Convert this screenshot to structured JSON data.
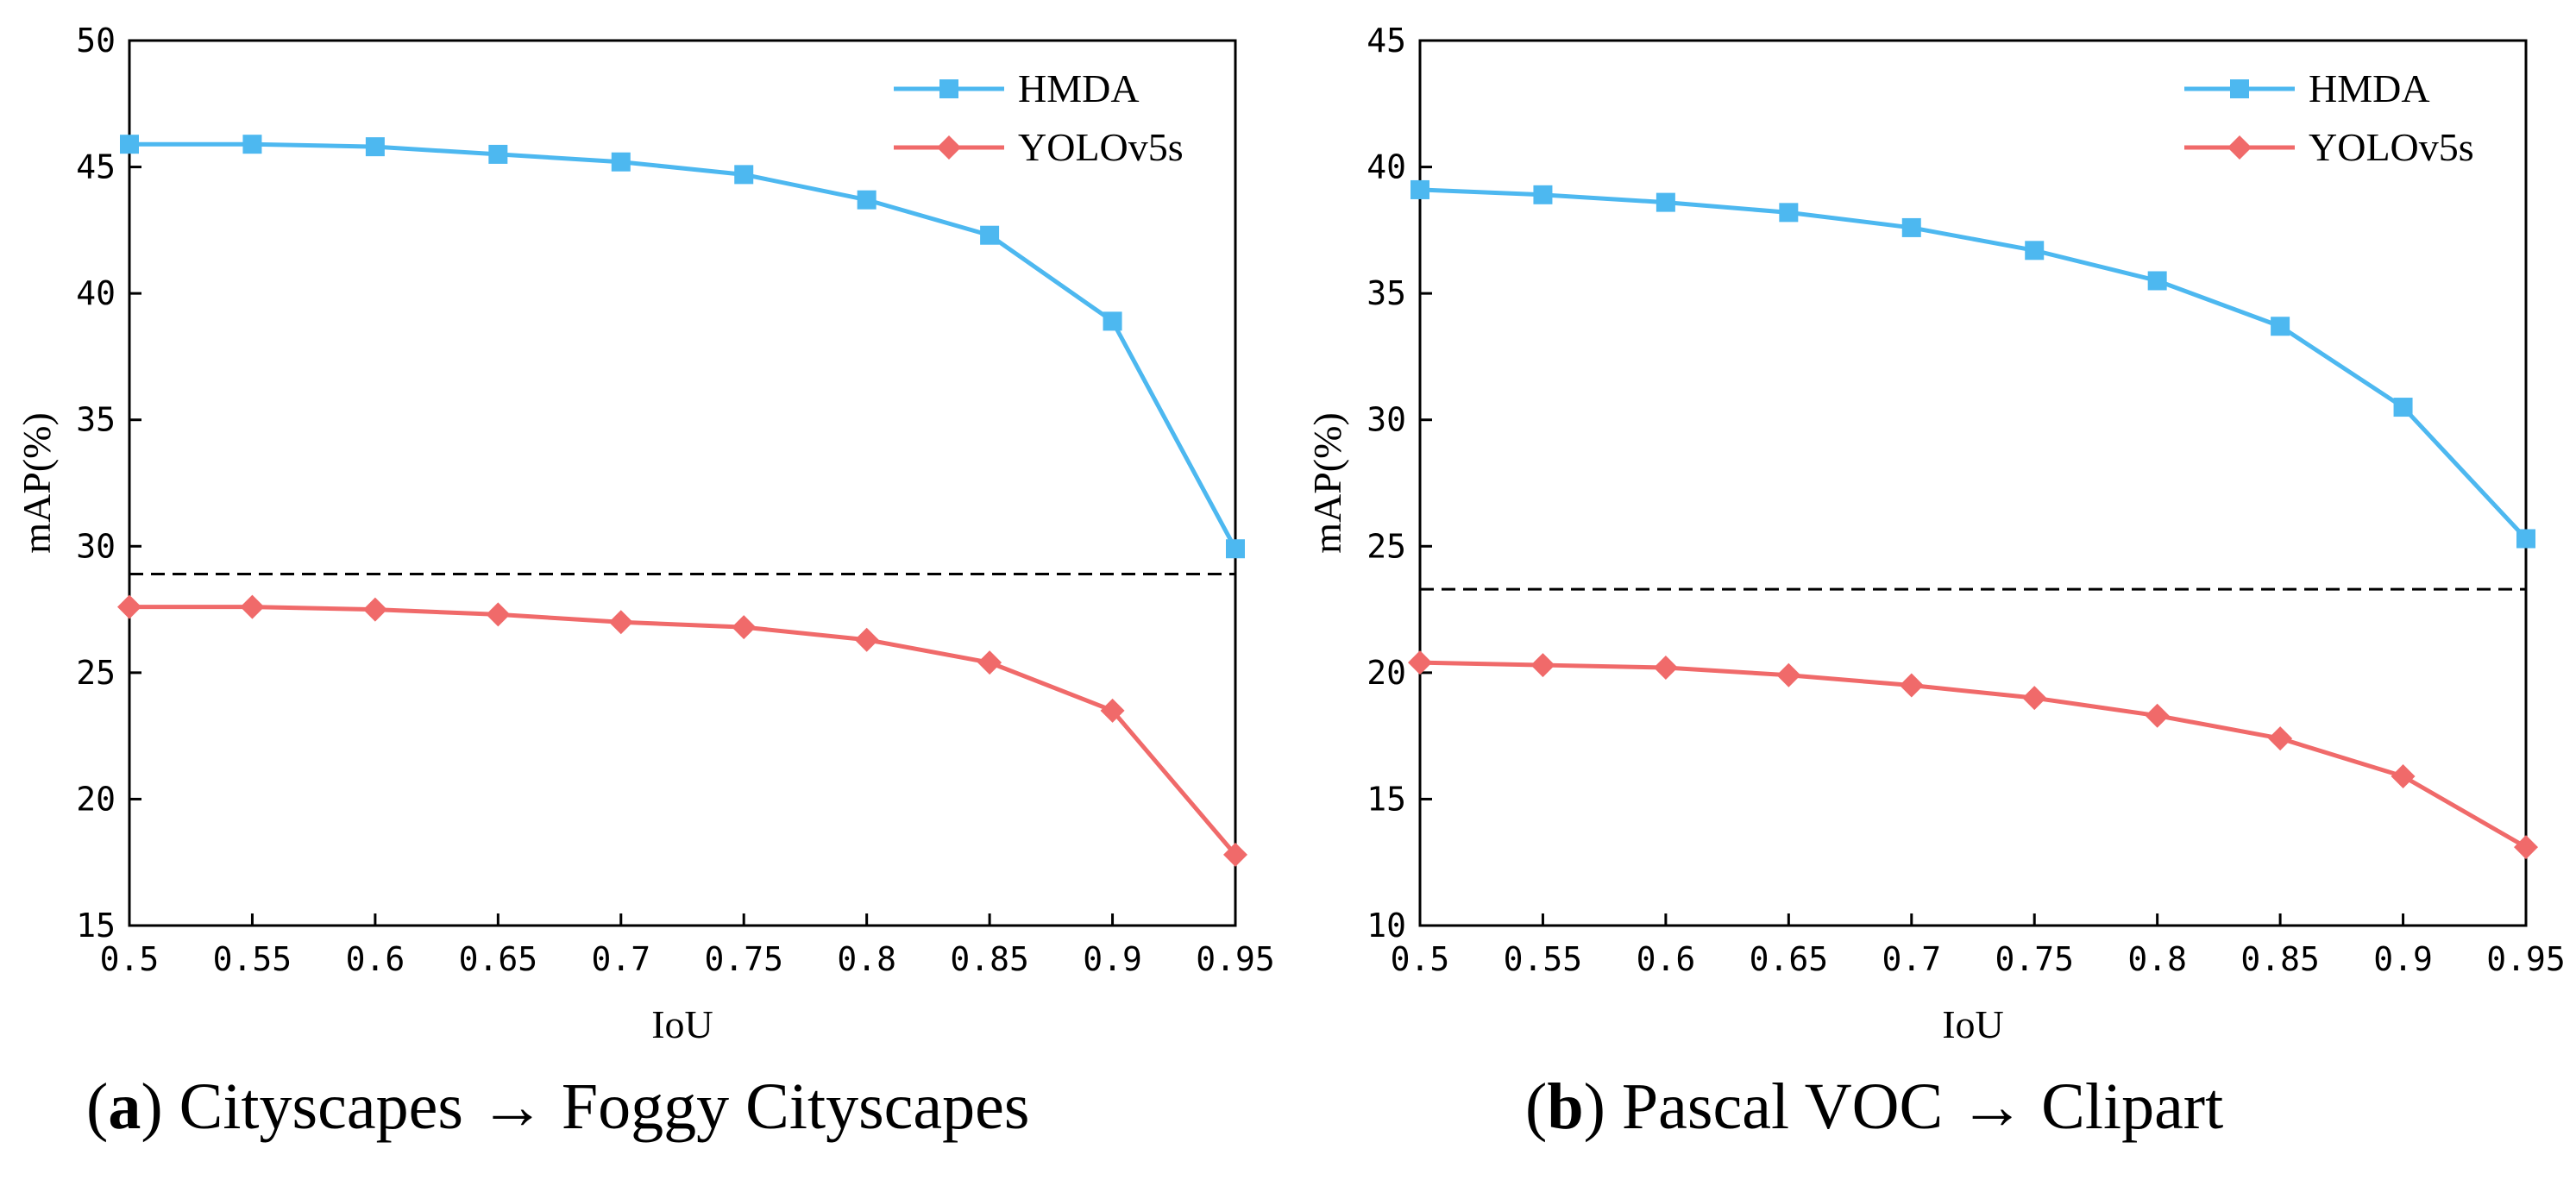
{
  "chart_data": [
    {
      "type": "line",
      "caption_letter": "a",
      "caption_text": "Cityscapes → Foggy Cityscapes",
      "xlabel": "IoU",
      "ylabel": "mAP(%)",
      "xlim": [
        0.5,
        0.95
      ],
      "ylim": [
        15,
        50
      ],
      "x_ticks": [
        "0.5",
        "0.55",
        "0.6",
        "0.65",
        "0.7",
        "0.75",
        "0.8",
        "0.85",
        "0.9",
        "0.95"
      ],
      "y_ticks": [
        "15",
        "20",
        "25",
        "30",
        "35",
        "40",
        "45",
        "50"
      ],
      "x": [
        0.5,
        0.55,
        0.6,
        0.65,
        0.7,
        0.75,
        0.8,
        0.85,
        0.9,
        0.95
      ],
      "series": [
        {
          "name": "HMDA",
          "color": "#4db8f0",
          "marker": "square",
          "values": [
            45.9,
            45.9,
            45.8,
            45.5,
            45.2,
            44.7,
            43.7,
            42.3,
            38.9,
            29.9
          ]
        },
        {
          "name": "YOLOv5s",
          "color": "#f06a6a",
          "marker": "diamond",
          "values": [
            27.6,
            27.6,
            27.5,
            27.3,
            27.0,
            26.8,
            26.3,
            25.4,
            23.5,
            17.8
          ]
        }
      ],
      "reference_line": 28.9,
      "legend": "top-right"
    },
    {
      "type": "line",
      "caption_letter": "b",
      "caption_text": "Pascal VOC → Clipart",
      "xlabel": "IoU",
      "ylabel": "mAP(%)",
      "xlim": [
        0.5,
        0.95
      ],
      "ylim": [
        10,
        45
      ],
      "x_ticks": [
        "0.5",
        "0.55",
        "0.6",
        "0.65",
        "0.7",
        "0.75",
        "0.8",
        "0.85",
        "0.9",
        "0.95"
      ],
      "y_ticks": [
        "10",
        "15",
        "20",
        "25",
        "30",
        "35",
        "40",
        "45"
      ],
      "x": [
        0.5,
        0.55,
        0.6,
        0.65,
        0.7,
        0.75,
        0.8,
        0.85,
        0.9,
        0.95
      ],
      "series": [
        {
          "name": "HMDA",
          "color": "#4db8f0",
          "marker": "square",
          "values": [
            39.1,
            38.9,
            38.6,
            38.2,
            37.6,
            36.7,
            35.5,
            33.7,
            30.5,
            25.3
          ]
        },
        {
          "name": "YOLOv5s",
          "color": "#f06a6a",
          "marker": "diamond",
          "values": [
            20.4,
            20.3,
            20.2,
            19.9,
            19.5,
            19.0,
            18.3,
            17.4,
            15.9,
            13.1
          ]
        }
      ],
      "reference_line": 23.3,
      "legend": "top-right"
    }
  ]
}
